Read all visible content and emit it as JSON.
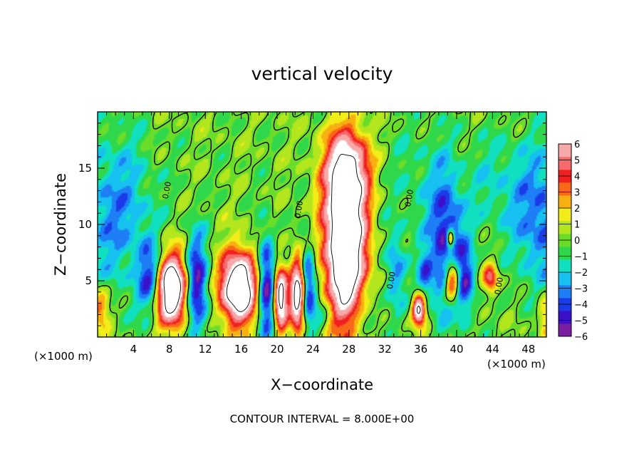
{
  "chart_data": {
    "type": "heatmap",
    "title": "vertical velocity",
    "xlabel": "X−coordinate",
    "ylabel": "Z−coordinate",
    "x_unit_left": "(×1000 m)",
    "x_unit_right": "(×1000 m)",
    "footer": "CONTOUR INTERVAL = 8.000E+00",
    "xlim": [
      0,
      50
    ],
    "ylim": [
      0,
      20
    ],
    "x_ticks": [
      4,
      8,
      12,
      16,
      20,
      24,
      28,
      32,
      36,
      40,
      44,
      48
    ],
    "x_tick_labels": [
      "4",
      "8",
      "12",
      "16",
      "20",
      "24",
      "28",
      "32",
      "36",
      "40",
      "44",
      "48"
    ],
    "y_ticks": [
      5,
      10,
      15
    ],
    "y_tick_labels": [
      "5",
      "10",
      "15"
    ],
    "colorbar": {
      "min": -6,
      "max": 6,
      "ticks": [
        6,
        5,
        4,
        3,
        2,
        1,
        0,
        -1,
        -2,
        -3,
        -4,
        -5,
        -6
      ],
      "tick_labels": [
        "6",
        "5",
        "4",
        "3",
        "2",
        "1",
        "0",
        "−1",
        "−2",
        "−3",
        "−4",
        "−5",
        "−6"
      ],
      "colors": [
        "#7a1fa0",
        "#3b10c8",
        "#1b3be8",
        "#1d7ef5",
        "#16c0f0",
        "#10e0c0",
        "#2ed84a",
        "#6adc2a",
        "#b4e61e",
        "#f2ec18",
        "#f8b010",
        "#f86818",
        "#f02020",
        "#f56a6a",
        "#f7a8a8"
      ]
    },
    "contour_labels": [
      {
        "x": 8.0,
        "z": 13.0,
        "text": "0.00"
      },
      {
        "x": 22.7,
        "z": 11.3,
        "text": "0.00"
      },
      {
        "x": 35.0,
        "z": 12.3,
        "text": "0.00"
      },
      {
        "x": 33.0,
        "z": 5.0,
        "text": "0.00"
      },
      {
        "x": 45.0,
        "z": 4.5,
        "text": "0.00"
      }
    ],
    "features": [
      {
        "kind": "updraft",
        "x": 8.2,
        "z": 4.2,
        "sx": 1.3,
        "sz": 2.2,
        "amp": 12
      },
      {
        "kind": "updraft",
        "x": 15.7,
        "z": 4.4,
        "sx": 1.4,
        "sz": 2.2,
        "amp": 12
      },
      {
        "kind": "updraft",
        "x": 20.4,
        "z": 3.5,
        "sx": 0.55,
        "sz": 1.9,
        "amp": 10
      },
      {
        "kind": "updraft",
        "x": 22.3,
        "z": 3.8,
        "sx": 0.55,
        "sz": 2.2,
        "amp": 10
      },
      {
        "kind": "updraft",
        "x": 27.6,
        "z": 8.5,
        "sx": 1.6,
        "sz": 5.2,
        "amp": 13
      },
      {
        "kind": "updraft",
        "x": 27.8,
        "z": 15.0,
        "sx": 1.8,
        "sz": 2.3,
        "amp": 5
      },
      {
        "kind": "updraft",
        "x": 35.8,
        "z": 2.4,
        "sx": 0.5,
        "sz": 0.9,
        "amp": 9
      },
      {
        "kind": "updraft",
        "x": 39.5,
        "z": 5.0,
        "sx": 0.6,
        "sz": 1.3,
        "amp": 8
      },
      {
        "kind": "updraft",
        "x": 39.3,
        "z": 8.8,
        "sx": 0.3,
        "sz": 0.6,
        "amp": 7
      },
      {
        "kind": "updraft",
        "x": 43.8,
        "z": 5.2,
        "sx": 0.6,
        "sz": 0.9,
        "amp": 5
      },
      {
        "kind": "updraft",
        "x": 0.3,
        "z": 2.5,
        "sx": 0.7,
        "sz": 1.4,
        "amp": 4
      },
      {
        "kind": "updraft",
        "x": 49.8,
        "z": 2.0,
        "sx": 0.6,
        "sz": 1.4,
        "amp": 3
      },
      {
        "kind": "downdraft",
        "x": 11.0,
        "z": 4.5,
        "sx": 0.9,
        "sz": 3.2,
        "amp": -6
      },
      {
        "kind": "downdraft",
        "x": 6.0,
        "z": 5.0,
        "sx": 1.0,
        "sz": 2.2,
        "amp": -5
      },
      {
        "kind": "downdraft",
        "x": 18.8,
        "z": 4.5,
        "sx": 0.7,
        "sz": 3.2,
        "amp": -6
      },
      {
        "kind": "downdraft",
        "x": 23.4,
        "z": 4.8,
        "sx": 0.6,
        "sz": 2.5,
        "amp": -5
      },
      {
        "kind": "downdraft",
        "x": 38.8,
        "z": 8.0,
        "sx": 1.3,
        "sz": 4.2,
        "amp": -5
      },
      {
        "kind": "downdraft",
        "x": 41.0,
        "z": 5.0,
        "sx": 0.8,
        "sz": 2.2,
        "amp": -4
      },
      {
        "kind": "downdraft",
        "x": 33.2,
        "z": 6.0,
        "sx": 0.8,
        "sz": 2.5,
        "amp": -3
      },
      {
        "kind": "downdraft",
        "x": 36.5,
        "z": 5.5,
        "sx": 0.6,
        "sz": 1.5,
        "amp": -3
      },
      {
        "kind": "downdraft",
        "x": 2.0,
        "z": 11.0,
        "sx": 3.0,
        "sz": 5.0,
        "amp": -3
      },
      {
        "kind": "downdraft",
        "x": 49.5,
        "z": 10.5,
        "sx": 2.2,
        "sz": 4.5,
        "amp": -3.5
      },
      {
        "kind": "downdraft",
        "x": 44.5,
        "z": 13.5,
        "sx": 2.5,
        "sz": 3.5,
        "amp": -1.5
      },
      {
        "kind": "downdraft",
        "x": 36.0,
        "z": 14.0,
        "sx": 3.0,
        "sz": 4.0,
        "amp": -1.2
      },
      {
        "kind": "downdraft",
        "x": 30.0,
        "z": 2.0,
        "sx": 1.5,
        "sz": 1.5,
        "amp": -1.5
      },
      {
        "kind": "downdraft",
        "x": 25.0,
        "z": 2.0,
        "sx": 1.0,
        "sz": 1.5,
        "amp": -2
      }
    ]
  }
}
